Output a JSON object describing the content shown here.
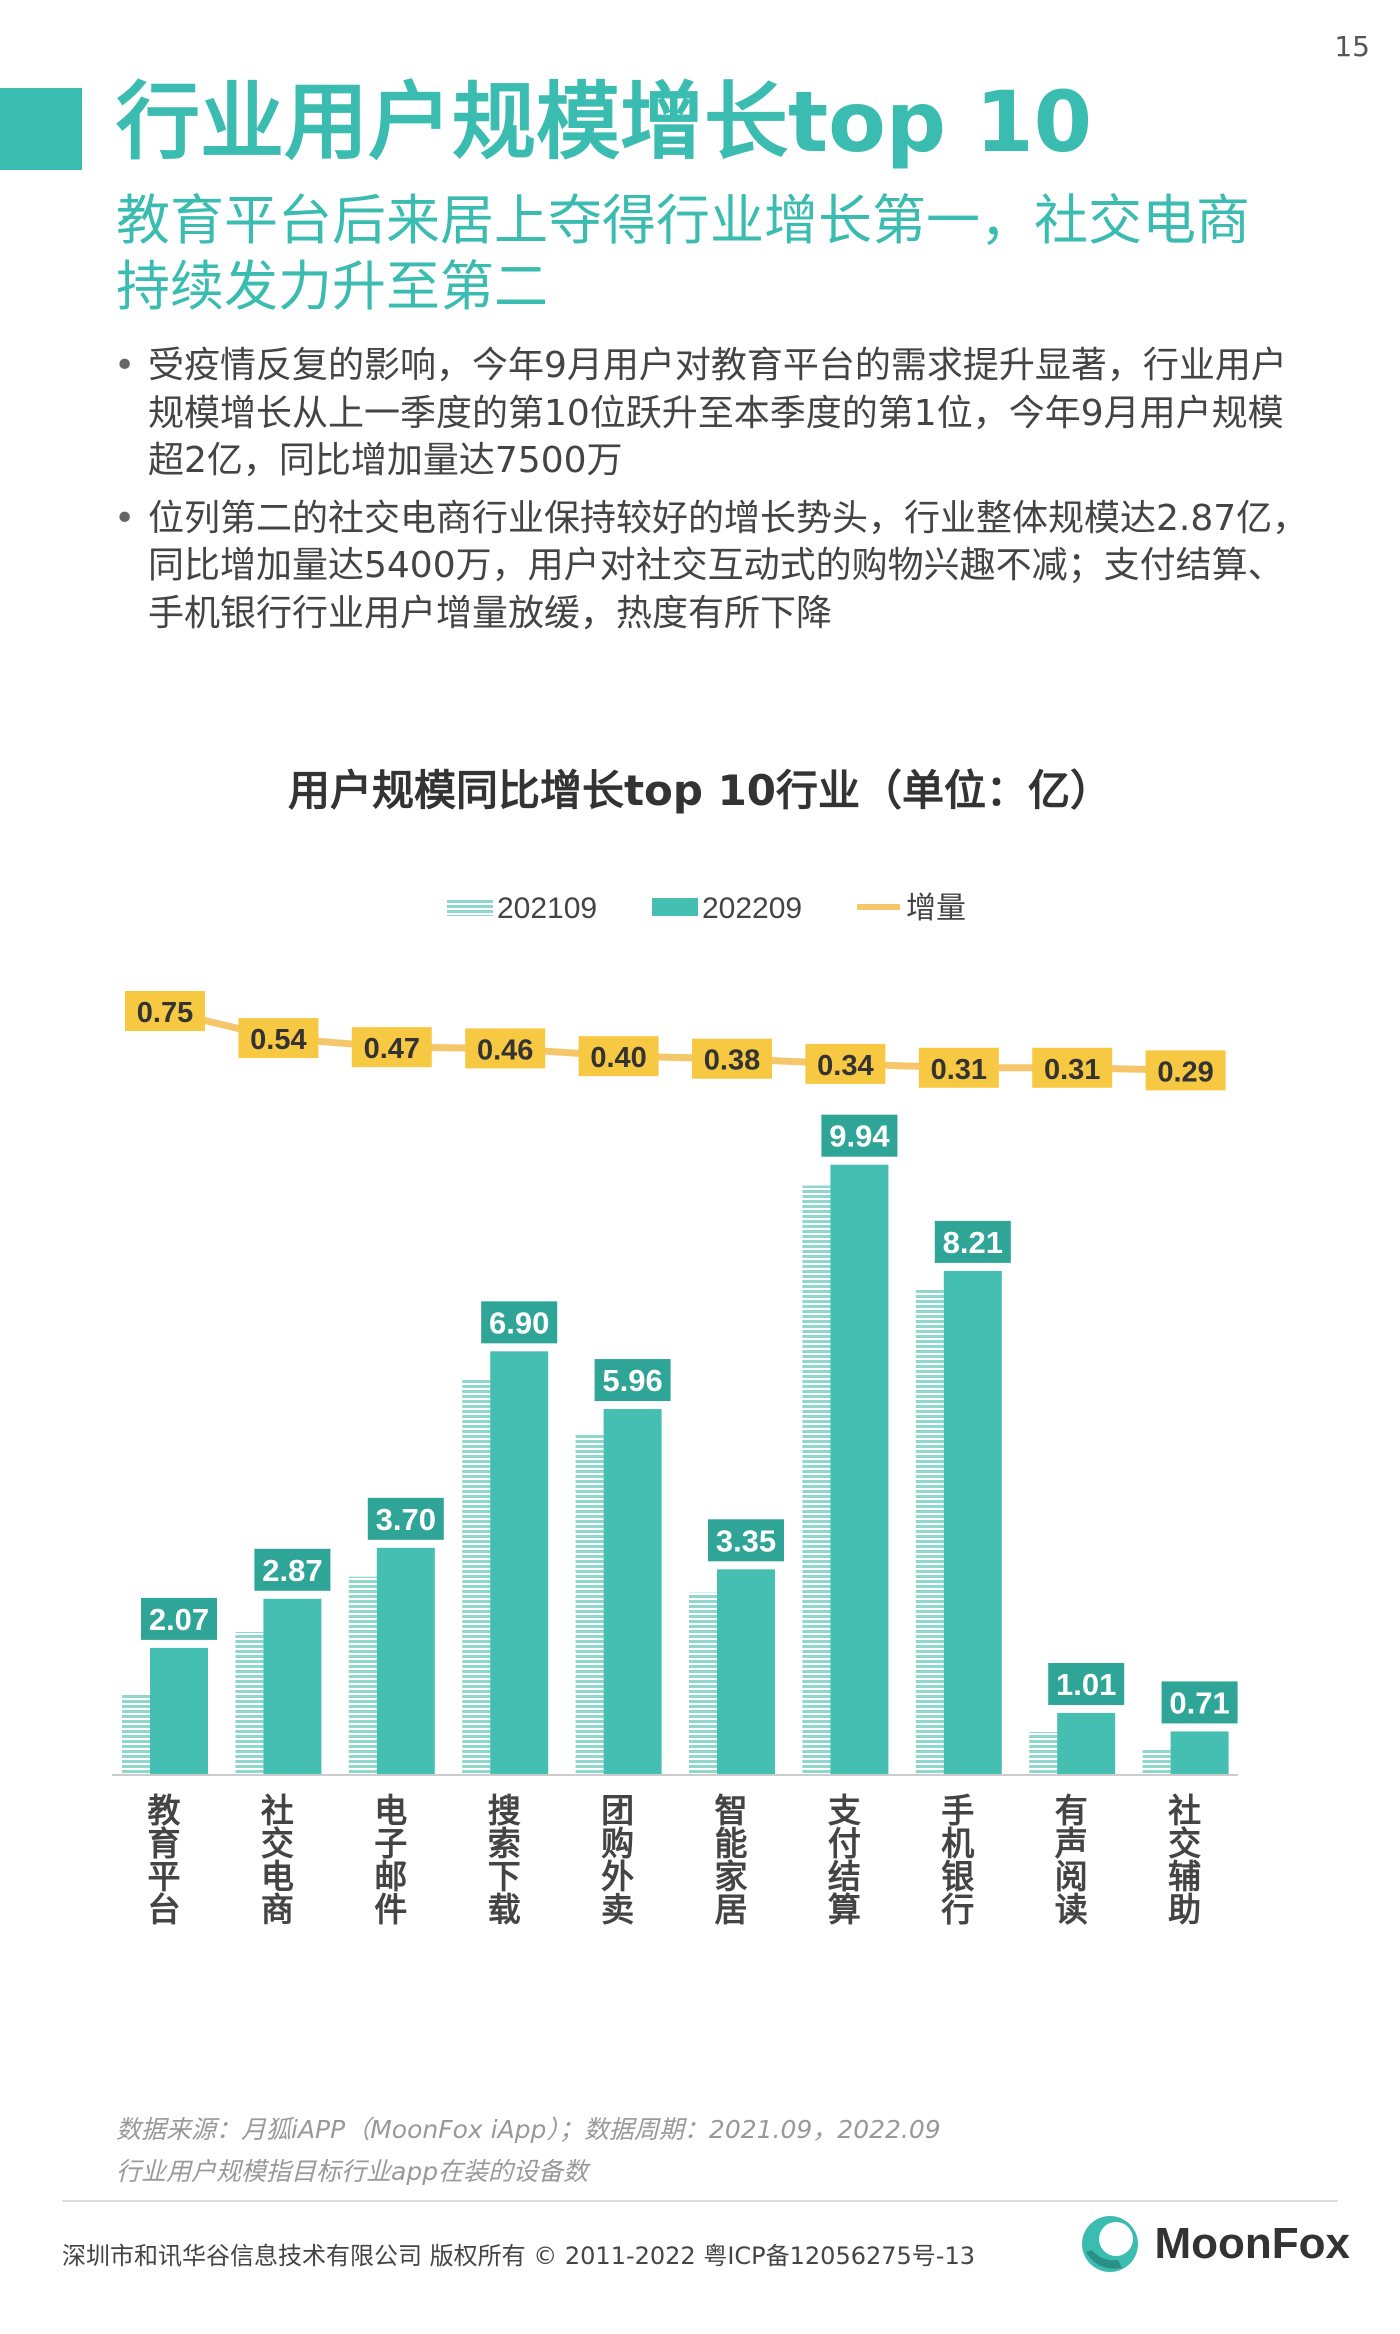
{
  "page": {
    "number": "15",
    "title": "行业用户规模增长top 10",
    "subtitle": "教育平台后来居上夺得行业增长第一，社交电商持续发力升至第二",
    "bullets": [
      "受疫情反复的影响，今年9月用户对教育平台的需求提升显著，行业用户规模增长从上一季度的第10位跃升至本季度的第1位，今年9月用户规模超2亿，同比增加量达7500万",
      "位列第二的社交电商行业保持较好的增长势头，行业整体规模达2.87亿，同比增加量达5400万，用户对社交互动式的购物兴趣不减；支付结算、手机银行行业用户增量放缓，热度有所下降"
    ],
    "source_line1": "数据来源：月狐iAPP（MoonFox iApp）；数据周期：2021.09，2022.09",
    "source_line2": "行业用户规模指目标行业app在装的设备数",
    "copyright": "深圳市和讯华谷信息技术有限公司 版权所有 © 2011-2022 粤ICP备12056275号-13",
    "logo_text": "MoonFox"
  },
  "colors": {
    "accent": "#3bbcb0",
    "bar_2022": "#45bfb2",
    "bar_2021": "#8fd6cd",
    "line": "#f5c76a",
    "label_bg_line": "#f7c842",
    "label_bg_bar": "#2fa597"
  },
  "chart_data": {
    "type": "bar",
    "title": "用户规模同比增长top 10行业（单位：亿）",
    "categories": [
      "教育平台",
      "社交电商",
      "电子邮件",
      "搜索下载",
      "团购外卖",
      "智能家居",
      "支付结算",
      "手机银行",
      "有声阅读",
      "社交辅助"
    ],
    "series": [
      {
        "name": "202109",
        "type": "bar",
        "values": [
          1.32,
          2.33,
          3.23,
          6.44,
          5.56,
          2.97,
          9.6,
          7.9,
          0.7,
          0.42
        ]
      },
      {
        "name": "202209",
        "type": "bar",
        "values": [
          2.07,
          2.87,
          3.7,
          6.9,
          5.96,
          3.35,
          9.94,
          8.21,
          1.01,
          0.71
        ],
        "data_labels": [
          "2.07",
          "2.87",
          "3.70",
          "6.90",
          "5.96",
          "3.35",
          "9.94",
          "8.21",
          "1.01",
          "0.71"
        ]
      },
      {
        "name": "增量",
        "type": "line",
        "values": [
          0.75,
          0.54,
          0.47,
          0.46,
          0.4,
          0.38,
          0.34,
          0.31,
          0.31,
          0.29
        ],
        "data_labels": [
          "0.75",
          "0.54",
          "0.47",
          "0.46",
          "0.40",
          "0.38",
          "0.34",
          "0.31",
          "0.31",
          "0.29"
        ]
      }
    ],
    "bar_ylim": [
      0,
      10
    ],
    "legend_position": "top-center",
    "grid": false
  }
}
